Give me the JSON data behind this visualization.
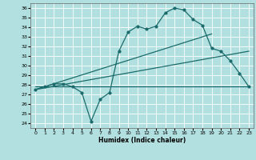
{
  "background_color": "#b2e0e0",
  "grid_color": "#ffffff",
  "line_color": "#1a6b6b",
  "xlabel": "Humidex (Indice chaleur)",
  "xlim": [
    -0.5,
    23.5
  ],
  "ylim": [
    23.5,
    36.5
  ],
  "yticks": [
    24,
    25,
    26,
    27,
    28,
    29,
    30,
    31,
    32,
    33,
    34,
    35,
    36
  ],
  "xticks": [
    0,
    1,
    2,
    3,
    4,
    5,
    6,
    7,
    8,
    9,
    10,
    11,
    12,
    13,
    14,
    15,
    16,
    17,
    18,
    19,
    20,
    21,
    22,
    23
  ],
  "curve_x": [
    0,
    1,
    2,
    3,
    4,
    5,
    6,
    7,
    8,
    9,
    10,
    11,
    12,
    13,
    14,
    15,
    16,
    17,
    18,
    19,
    20,
    21,
    22,
    23
  ],
  "curve_y": [
    27.5,
    27.8,
    28.1,
    28.1,
    27.8,
    27.2,
    24.2,
    26.5,
    27.2,
    31.5,
    33.5,
    34.1,
    33.8,
    34.1,
    35.5,
    36.0,
    35.8,
    34.8,
    34.2,
    31.8,
    31.5,
    30.5,
    29.2,
    27.8
  ],
  "hline_x": [
    0,
    23
  ],
  "hline_y": [
    27.8,
    27.8
  ],
  "line1_x": [
    0,
    19
  ],
  "line1_y": [
    27.5,
    33.3
  ],
  "line2_x": [
    0,
    23
  ],
  "line2_y": [
    27.5,
    31.5
  ]
}
